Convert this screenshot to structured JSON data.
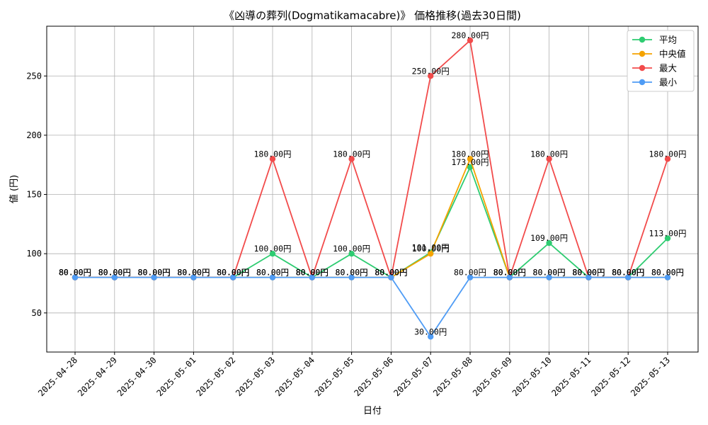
{
  "chart_data": {
    "type": "line",
    "title": "《凶導の葬列(Dogmatikamacabre)》 価格推移(過去30日間)",
    "xlabel": "日付",
    "ylabel": "値 (円)",
    "ylim": [
      17,
      292
    ],
    "yticks": [
      50,
      100,
      150,
      200,
      250
    ],
    "grid": true,
    "legend_position": "top-right",
    "label_suffix": "円",
    "categories": [
      "2025-04-28",
      "2025-04-29",
      "2025-04-30",
      "2025-05-01",
      "2025-05-02",
      "2025-05-03",
      "2025-05-04",
      "2025-05-05",
      "2025-05-06",
      "2025-05-07",
      "2025-05-08",
      "2025-05-09",
      "2025-05-10",
      "2025-05-11",
      "2025-05-12",
      "2025-05-13"
    ],
    "series": [
      {
        "name": "平均",
        "color": "#2ecc71",
        "values": [
          80,
          80,
          80,
          80,
          80,
          100,
          80,
          100,
          80,
          101,
          173,
          80,
          109,
          80,
          80,
          113
        ]
      },
      {
        "name": "中央値",
        "color": "#f5a300",
        "values": [
          80,
          80,
          80,
          80,
          80,
          80,
          80,
          80,
          80,
          100,
          180,
          80,
          80,
          80,
          80,
          80
        ]
      },
      {
        "name": "最大",
        "color": "#f24b4b",
        "values": [
          80,
          80,
          80,
          80,
          80,
          180,
          80,
          180,
          80,
          250,
          280,
          80,
          180,
          80,
          80,
          180
        ]
      },
      {
        "name": "最小",
        "color": "#4f9cf5",
        "values": [
          80,
          80,
          80,
          80,
          80,
          80,
          80,
          80,
          80,
          30,
          80,
          80,
          80,
          80,
          80,
          80
        ]
      }
    ]
  }
}
